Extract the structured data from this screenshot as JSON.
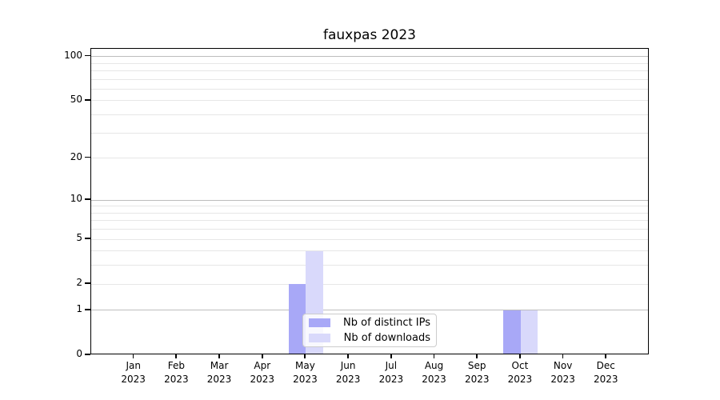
{
  "title": "fauxpas 2023",
  "chart_data": {
    "type": "bar",
    "title": "fauxpas 2023",
    "categories": [
      {
        "month": "Jan",
        "year": "2023"
      },
      {
        "month": "Feb",
        "year": "2023"
      },
      {
        "month": "Mar",
        "year": "2023"
      },
      {
        "month": "Apr",
        "year": "2023"
      },
      {
        "month": "May",
        "year": "2023"
      },
      {
        "month": "Jun",
        "year": "2023"
      },
      {
        "month": "Jul",
        "year": "2023"
      },
      {
        "month": "Aug",
        "year": "2023"
      },
      {
        "month": "Sep",
        "year": "2023"
      },
      {
        "month": "Oct",
        "year": "2023"
      },
      {
        "month": "Nov",
        "year": "2023"
      },
      {
        "month": "Dec",
        "year": "2023"
      }
    ],
    "series": [
      {
        "name": "Nb of distinct IPs",
        "color": "#a8a8f7",
        "values": [
          0,
          0,
          0,
          0,
          2,
          0,
          0,
          0,
          0,
          1,
          0,
          0
        ]
      },
      {
        "name": "Nb of downloads",
        "color": "#d9d9fb",
        "values": [
          0,
          0,
          0,
          0,
          4,
          0,
          0,
          0,
          0,
          1,
          0,
          0
        ]
      }
    ],
    "y_axis": {
      "scale": "log1p",
      "tick_labels": [
        100,
        50,
        20,
        10,
        5,
        2,
        1,
        0
      ],
      "major_gridlines": [
        1,
        10,
        100
      ],
      "minor_gridlines": [
        2,
        3,
        4,
        5,
        6,
        7,
        8,
        9,
        20,
        30,
        40,
        50,
        60,
        70,
        80,
        90
      ],
      "range": [
        0,
        112
      ]
    },
    "legend_position": "lower center",
    "grid": true
  },
  "colors": {
    "distinct_ips_bar": "#a8a8f7",
    "downloads_bar": "#d9d9fb",
    "major_grid": "#bdbdbd",
    "minor_grid": "#e7e7e7",
    "axis": "#000000",
    "background": "#ffffff"
  }
}
